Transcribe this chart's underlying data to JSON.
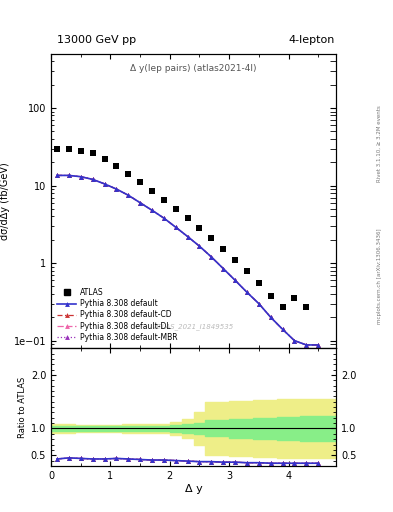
{
  "title_left": "13000 GeV pp",
  "title_right": "4-lepton",
  "plot_label": "Δ y(lep pairs) (atlas2021-4l)",
  "watermark": "ATLAS_2021_I1849535",
  "right_label_top": "Rivet 3.1.10, ≥ 3.2M events",
  "right_label_bottom": "mcplots.cern.ch [arXiv:1306.3436]",
  "ylabel_main": "dσ/dΔy (fb/GeV)",
  "ylabel_ratio": "Ratio to ATLAS",
  "xlabel": "Δ y",
  "atlas_x": [
    0.1,
    0.3,
    0.5,
    0.7,
    0.9,
    1.1,
    1.3,
    1.5,
    1.7,
    1.9,
    2.1,
    2.3,
    2.5,
    2.7,
    2.9,
    3.1,
    3.3,
    3.5,
    3.7,
    3.9,
    4.1,
    4.3
  ],
  "atlas_y": [
    30,
    30,
    28,
    26,
    22,
    18,
    14,
    11,
    8.5,
    6.5,
    5.0,
    3.8,
    2.8,
    2.1,
    1.5,
    1.1,
    0.8,
    0.55,
    0.38,
    0.27,
    0.35,
    0.27
  ],
  "pythia_x": [
    0.1,
    0.3,
    0.5,
    0.7,
    0.9,
    1.1,
    1.3,
    1.5,
    1.7,
    1.9,
    2.1,
    2.3,
    2.5,
    2.7,
    2.9,
    3.1,
    3.3,
    3.5,
    3.7,
    3.9,
    4.1,
    4.3,
    4.5
  ],
  "pythia_default_y": [
    13.5,
    13.5,
    13.0,
    12.0,
    10.5,
    9.0,
    7.5,
    6.0,
    4.8,
    3.8,
    2.9,
    2.2,
    1.65,
    1.2,
    0.85,
    0.6,
    0.42,
    0.3,
    0.2,
    0.14,
    0.1,
    0.088,
    0.088
  ],
  "ratio_pythia_y": [
    0.43,
    0.45,
    0.44,
    0.43,
    0.43,
    0.44,
    0.43,
    0.42,
    0.41,
    0.41,
    0.4,
    0.39,
    0.38,
    0.38,
    0.37,
    0.37,
    0.36,
    0.36,
    0.35,
    0.35,
    0.35,
    0.35,
    0.35
  ],
  "atlas_band_x": [
    0.0,
    0.4,
    0.8,
    1.2,
    1.6,
    2.0,
    2.2,
    2.4,
    2.6,
    3.0,
    3.4,
    3.8,
    4.2,
    4.6,
    5.0
  ],
  "atlas_green_upper": [
    1.05,
    1.04,
    1.04,
    1.04,
    1.05,
    1.06,
    1.08,
    1.1,
    1.15,
    1.18,
    1.2,
    1.22,
    1.23,
    1.24,
    1.25
  ],
  "atlas_green_lower": [
    0.95,
    0.96,
    0.96,
    0.96,
    0.95,
    0.94,
    0.92,
    0.9,
    0.85,
    0.82,
    0.8,
    0.78,
    0.77,
    0.76,
    0.75
  ],
  "atlas_yellow_upper": [
    1.08,
    1.07,
    1.07,
    1.08,
    1.09,
    1.12,
    1.18,
    1.3,
    1.5,
    1.52,
    1.54,
    1.55,
    1.55,
    1.55,
    1.55
  ],
  "atlas_yellow_lower": [
    0.92,
    0.93,
    0.93,
    0.92,
    0.91,
    0.88,
    0.82,
    0.7,
    0.5,
    0.48,
    0.46,
    0.45,
    0.45,
    0.45,
    0.45
  ],
  "xlim": [
    0,
    4.8
  ],
  "ylim_main": [
    0.08,
    500
  ],
  "ylim_ratio": [
    0.3,
    2.5
  ],
  "ratio_yticks": [
    0.5,
    1.0,
    2.0
  ],
  "line_color_default": "#3333cc",
  "line_color_cd": "#cc3333",
  "line_color_dl": "#ee66aa",
  "line_color_mbr": "#9933bb",
  "atlas_color": "black"
}
